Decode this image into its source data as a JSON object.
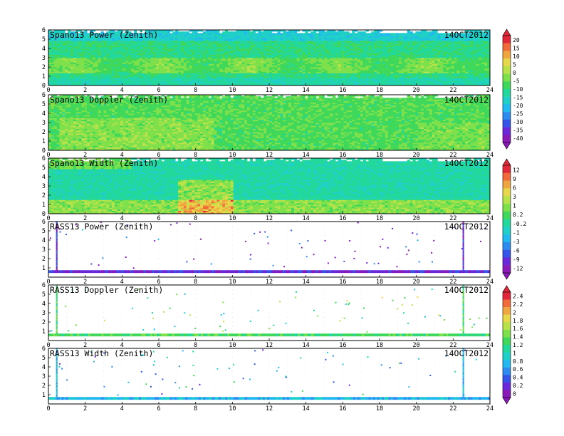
{
  "colors": {
    "palette": [
      "#8a19b8",
      "#6a28d8",
      "#3455e8",
      "#2e8cf0",
      "#22b8f0",
      "#1fd0c8",
      "#22d89a",
      "#3fd85a",
      "#7ee04a",
      "#b8e24a",
      "#e6d84a",
      "#f0a640",
      "#f06a3a",
      "#e0283a"
    ]
  },
  "chart_data": [
    {
      "type": "heatmap",
      "title": "Spano13 Power (Zenith)",
      "date": "14OCT2012",
      "xlim": [
        0,
        24
      ],
      "ylim": [
        0,
        6
      ],
      "x_ticks": [
        "0",
        "2",
        "4",
        "6",
        "8",
        "10",
        "12",
        "14",
        "16",
        "18",
        "20",
        "22",
        "24"
      ],
      "y_ticks": [
        "0",
        "1",
        "2",
        "3",
        "4",
        "5",
        "6"
      ],
      "colorbar": 1,
      "field": {
        "kind": "power"
      }
    },
    {
      "type": "heatmap",
      "title": "Spano13 Doppler (Zenith)",
      "date": "14OCT2012",
      "xlim": [
        0,
        24
      ],
      "ylim": [
        0,
        6
      ],
      "x_ticks": [
        "0",
        "2",
        "4",
        "6",
        "8",
        "10",
        "12",
        "14",
        "16",
        "18",
        "20",
        "22",
        "24"
      ],
      "y_ticks": [
        "0",
        "1",
        "2",
        "3",
        "4",
        "5",
        "6"
      ],
      "colorbar": 1,
      "field": {
        "kind": "doppler"
      }
    },
    {
      "type": "heatmap",
      "title": "Spano13 Width (Zenith)",
      "date": "14OCT2012",
      "xlim": [
        0,
        24
      ],
      "ylim": [
        0,
        6
      ],
      "x_ticks": [
        "0",
        "2",
        "4",
        "6",
        "8",
        "10",
        "12",
        "14",
        "16",
        "18",
        "20",
        "22",
        "24"
      ],
      "y_ticks": [
        "0",
        "1",
        "2",
        "3",
        "4",
        "5",
        "6"
      ],
      "colorbar": 2,
      "field": {
        "kind": "width"
      }
    },
    {
      "type": "heatmap",
      "title": "RASS13 Power (Zenith)",
      "date": "14OCT2012",
      "xlim": [
        0,
        24
      ],
      "ylim": [
        0,
        6
      ],
      "x_ticks": [
        "0",
        "2",
        "4",
        "6",
        "8",
        "10",
        "12",
        "14",
        "16",
        "18",
        "20",
        "22",
        "24"
      ],
      "y_ticks": [
        "1",
        "2",
        "3",
        "4",
        "5",
        "6"
      ],
      "colorbar": 2,
      "field": {
        "kind": "rass",
        "band_color_index": 1,
        "spike_times": [
          0.45,
          22.55
        ]
      }
    },
    {
      "type": "heatmap",
      "title": "RASS13 Doppler (Zenith)",
      "date": "14OCT2012",
      "xlim": [
        0,
        24
      ],
      "ylim": [
        0,
        6
      ],
      "x_ticks": [
        "0",
        "2",
        "4",
        "6",
        "8",
        "10",
        "12",
        "14",
        "16",
        "18",
        "20",
        "22",
        "24"
      ],
      "y_ticks": [
        "1",
        "2",
        "3",
        "4",
        "5",
        "6"
      ],
      "colorbar": 3,
      "field": {
        "kind": "rass",
        "band_color_index": 7,
        "spike_times": [
          0.45,
          22.55
        ]
      }
    },
    {
      "type": "heatmap",
      "title": "RASS13 Width (Zenith)",
      "date": "14OCT2012",
      "xlim": [
        0,
        24
      ],
      "ylim": [
        0,
        6
      ],
      "x_ticks": [
        "0",
        "2",
        "4",
        "6",
        "8",
        "10",
        "12",
        "14",
        "16",
        "18",
        "20",
        "22",
        "24"
      ],
      "y_ticks": [
        "1",
        "2",
        "3",
        "4",
        "5",
        "6"
      ],
      "colorbar": 3,
      "field": {
        "kind": "rass",
        "band_color_index": 4,
        "spike_times": [
          0.45,
          22.55
        ]
      }
    }
  ],
  "colorbars": [
    {
      "labels": [
        "20",
        "15",
        "10",
        "5",
        "0",
        "-5",
        "-10",
        "-15",
        "-20",
        "-25",
        "-30",
        "-35",
        "-40"
      ]
    },
    {
      "labels": [
        "12",
        "9",
        "6",
        "3",
        "1",
        "0.2",
        "-0.2",
        "-1",
        "-3",
        "-6",
        "-9",
        "-12"
      ]
    },
    {
      "labels": [
        "2.4",
        "2.2",
        "2",
        "1.8",
        "1.6",
        "1.4",
        "1.2",
        "1",
        "0.8",
        "0.6",
        "0.4",
        "0.2",
        "0"
      ]
    }
  ]
}
